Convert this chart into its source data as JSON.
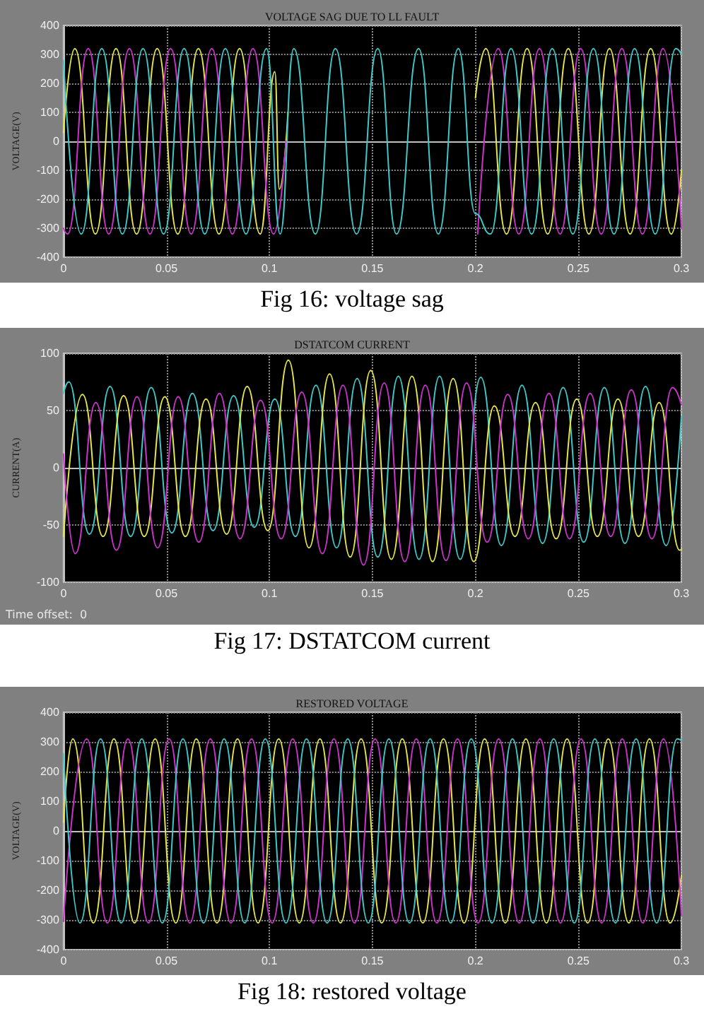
{
  "chart_data": [
    {
      "type": "line",
      "title": "VOLTAGE SAG DUE TO LL FAULT",
      "ylabel": "VOLTAGE(V)",
      "annotations": [
        "Fig 16: voltage sag"
      ],
      "xlim": [
        0,
        0.3
      ],
      "xticks": [
        0,
        0.05,
        0.1,
        0.15,
        0.2,
        0.25,
        0.3
      ],
      "ylim": [
        -400,
        400
      ],
      "yticks": [
        -400,
        -300,
        -200,
        -100,
        0,
        100,
        200,
        300,
        400
      ],
      "grid": true,
      "series": [
        {
          "color": "#e6e64c",
          "x": [
            0,
            0.0055,
            0.0155,
            0.0255,
            0.0355,
            0.0455,
            0.0555,
            0.0655,
            0.0755,
            0.0855,
            0.0955,
            0.1026,
            0.1048,
            0.109,
            0.15,
            0.2,
            0.2051,
            0.2151,
            0.2251,
            0.2351,
            0.2451,
            0.2551,
            0.2651,
            0.2751,
            0.2851,
            0.2951,
            0.3
          ],
          "values": [
            30,
            320,
            -320,
            320,
            -320,
            320,
            -320,
            320,
            -320,
            320,
            -320,
            240,
            -165,
            100,
            null,
            150,
            320,
            -320,
            320,
            -320,
            320,
            -320,
            320,
            -320,
            320,
            -320,
            -100
          ]
        },
        {
          "color": "#cc33cc",
          "x": [
            0,
            0.002,
            0.012,
            0.022,
            0.032,
            0.042,
            0.052,
            0.062,
            0.072,
            0.082,
            0.092,
            0.102,
            0.108,
            0.15,
            0.2011,
            0.2111,
            0.2211,
            0.2311,
            0.2411,
            0.2511,
            0.2611,
            0.2711,
            0.2811,
            0.2911,
            0.3
          ],
          "values": [
            -300,
            -320,
            320,
            -320,
            320,
            -320,
            320,
            -320,
            320,
            -320,
            320,
            -320,
            0,
            null,
            -320,
            320,
            -320,
            320,
            -320,
            320,
            -320,
            320,
            -320,
            320,
            -300
          ]
        },
        {
          "color": "#40c8c8",
          "x": [
            0,
            0.0086,
            0.0186,
            0.0286,
            0.0386,
            0.0486,
            0.0586,
            0.0686,
            0.0786,
            0.0886,
            0.0986,
            0.1052,
            0.1118,
            0.1223,
            0.132,
            0.1423,
            0.1526,
            0.1617,
            0.1724,
            0.182,
            0.1917,
            0.2,
            0.2073,
            0.2173,
            0.2273,
            0.2373,
            0.2473,
            0.2573,
            0.2673,
            0.2773,
            0.2873,
            0.2973,
            0.3
          ],
          "values": [
            280,
            -320,
            320,
            -320,
            320,
            -320,
            320,
            -320,
            320,
            -320,
            320,
            -320,
            320,
            -320,
            320,
            -320,
            320,
            -320,
            320,
            -320,
            320,
            -250,
            -320,
            320,
            -320,
            320,
            -320,
            320,
            -320,
            320,
            -320,
            320,
            300
          ]
        }
      ]
    },
    {
      "type": "line",
      "title": "DSTATCOM CURRENT",
      "ylabel": "CURRENT(A)",
      "annotations": [
        "Time offset:  0",
        "Fig 17: DSTATCOM current"
      ],
      "xlim": [
        0,
        0.3
      ],
      "xticks": [
        0,
        0.05,
        0.1,
        0.15,
        0.2,
        0.25,
        0.3
      ],
      "ylim": [
        -100,
        100
      ],
      "yticks": [
        -100,
        -50,
        0,
        50,
        100
      ],
      "grid": true,
      "series": [
        {
          "color": "#40c8c8",
          "x": [
            0,
            0.0026,
            0.0126,
            0.0226,
            0.0326,
            0.0426,
            0.0526,
            0.0626,
            0.0726,
            0.0826,
            0.0926,
            0.1026,
            0.1126,
            0.1226,
            0.1326,
            0.1426,
            0.1526,
            0.1626,
            0.1726,
            0.1826,
            0.1926,
            0.2026,
            0.2126,
            0.2226,
            0.2326,
            0.2426,
            0.2526,
            0.2626,
            0.2726,
            0.2826,
            0.2926,
            0.3
          ],
          "values": [
            65,
            75,
            -58,
            71,
            -60,
            70,
            -57,
            65,
            -55,
            63,
            -52,
            60,
            -60,
            72,
            -70,
            78,
            -78,
            80,
            -80,
            80,
            -80,
            79,
            -68,
            72,
            -66,
            70,
            -65,
            70,
            -66,
            71,
            -68,
            45
          ]
        },
        {
          "color": "#e6e64c",
          "x": [
            0,
            0.0092,
            0.0192,
            0.0292,
            0.0392,
            0.0492,
            0.0592,
            0.0692,
            0.0792,
            0.0892,
            0.0992,
            0.1092,
            0.1192,
            0.1292,
            0.1392,
            0.1492,
            0.1592,
            0.1692,
            0.1792,
            0.1892,
            0.1992,
            0.2092,
            0.2192,
            0.2292,
            0.2392,
            0.2492,
            0.2592,
            0.2692,
            0.2792,
            0.2892,
            0.2992,
            0.3
          ],
          "values": [
            -60,
            64,
            -60,
            63,
            -60,
            62,
            -60,
            60,
            -58,
            71,
            -55,
            94,
            -70,
            82,
            -78,
            85,
            -80,
            80,
            -82,
            78,
            -82,
            54,
            -60,
            57,
            -62,
            60,
            -60,
            60,
            -60,
            57,
            -72,
            -71
          ]
        },
        {
          "color": "#cc33cc",
          "x": [
            0,
            0.0057,
            0.0157,
            0.0257,
            0.0357,
            0.0457,
            0.0557,
            0.0657,
            0.0757,
            0.0857,
            0.0957,
            0.1057,
            0.1157,
            0.1257,
            0.1357,
            0.1457,
            0.1557,
            0.1657,
            0.1757,
            0.1857,
            0.1957,
            0.2057,
            0.2157,
            0.2257,
            0.2357,
            0.2457,
            0.2557,
            0.2657,
            0.2757,
            0.2857,
            0.2957,
            0.3
          ],
          "values": [
            12,
            -75,
            57,
            -72,
            62,
            -70,
            62,
            -65,
            65,
            -62,
            59,
            -62,
            66,
            -75,
            72,
            -85,
            74,
            -82,
            72,
            -81,
            74,
            -65,
            64,
            -62,
            65,
            -62,
            65,
            -60,
            68,
            -62,
            70,
            55
          ]
        }
      ]
    },
    {
      "type": "line",
      "title": "RESTORED VOLTAGE",
      "ylabel": "VOLTAGE(V)",
      "annotations": [
        "Fig 18: restored voltage"
      ],
      "xlim": [
        0,
        0.3
      ],
      "xticks": [
        0,
        0.05,
        0.1,
        0.15,
        0.2,
        0.25,
        0.3
      ],
      "ylim": [
        -400,
        400
      ],
      "yticks": [
        -400,
        -300,
        -200,
        -100,
        0,
        100,
        200,
        300,
        400
      ],
      "grid": true,
      "series": [
        {
          "color": "#e6e64c",
          "x": [
            0,
            0.0045,
            0.0145,
            0.0245,
            0.0345,
            0.0445,
            0.0545,
            0.0645,
            0.0745,
            0.0845,
            0.0945,
            0.1045,
            0.1145,
            0.1245,
            0.1345,
            0.1445,
            0.1545,
            0.1645,
            0.1745,
            0.1845,
            0.1945,
            0.2045,
            0.2145,
            0.2245,
            0.2345,
            0.2445,
            0.2545,
            0.2645,
            0.2745,
            0.2845,
            0.2945,
            0.3
          ],
          "values": [
            30,
            310,
            -310,
            310,
            -310,
            310,
            -310,
            310,
            -310,
            310,
            -310,
            310,
            -310,
            310,
            -310,
            310,
            -310,
            310,
            -310,
            310,
            -310,
            310,
            -310,
            310,
            -310,
            310,
            -310,
            310,
            -310,
            310,
            -310,
            -150
          ]
        },
        {
          "color": "#cc33cc",
          "x": [
            0,
            0.0113,
            0.0213,
            0.0313,
            0.0413,
            0.0513,
            0.0613,
            0.0713,
            0.0813,
            0.0913,
            0.1013,
            0.1113,
            0.1213,
            0.1313,
            0.1413,
            0.1513,
            0.1613,
            0.1713,
            0.1813,
            0.1913,
            0.2013,
            0.2113,
            0.2213,
            0.2313,
            0.2413,
            0.2513,
            0.2613,
            0.2713,
            0.2813,
            0.2913,
            0.3
          ],
          "values": [
            -305,
            310,
            -310,
            310,
            -310,
            310,
            -310,
            310,
            -310,
            310,
            -310,
            310,
            -310,
            310,
            -310,
            310,
            -310,
            310,
            -310,
            310,
            -310,
            310,
            -310,
            310,
            -310,
            310,
            -310,
            310,
            -310,
            310,
            -285
          ]
        },
        {
          "color": "#40c8c8",
          "x": [
            0,
            0.008,
            0.018,
            0.028,
            0.038,
            0.048,
            0.058,
            0.068,
            0.078,
            0.088,
            0.098,
            0.108,
            0.118,
            0.128,
            0.138,
            0.148,
            0.158,
            0.168,
            0.178,
            0.188,
            0.198,
            0.208,
            0.218,
            0.228,
            0.238,
            0.248,
            0.258,
            0.268,
            0.278,
            0.288,
            0.298,
            0.3
          ],
          "values": [
            260,
            -310,
            310,
            -310,
            310,
            -310,
            310,
            -310,
            310,
            -310,
            310,
            -310,
            310,
            -310,
            310,
            -310,
            310,
            -310,
            310,
            -310,
            310,
            -310,
            310,
            -310,
            310,
            -310,
            310,
            -310,
            310,
            -310,
            310,
            305
          ]
        }
      ]
    }
  ]
}
